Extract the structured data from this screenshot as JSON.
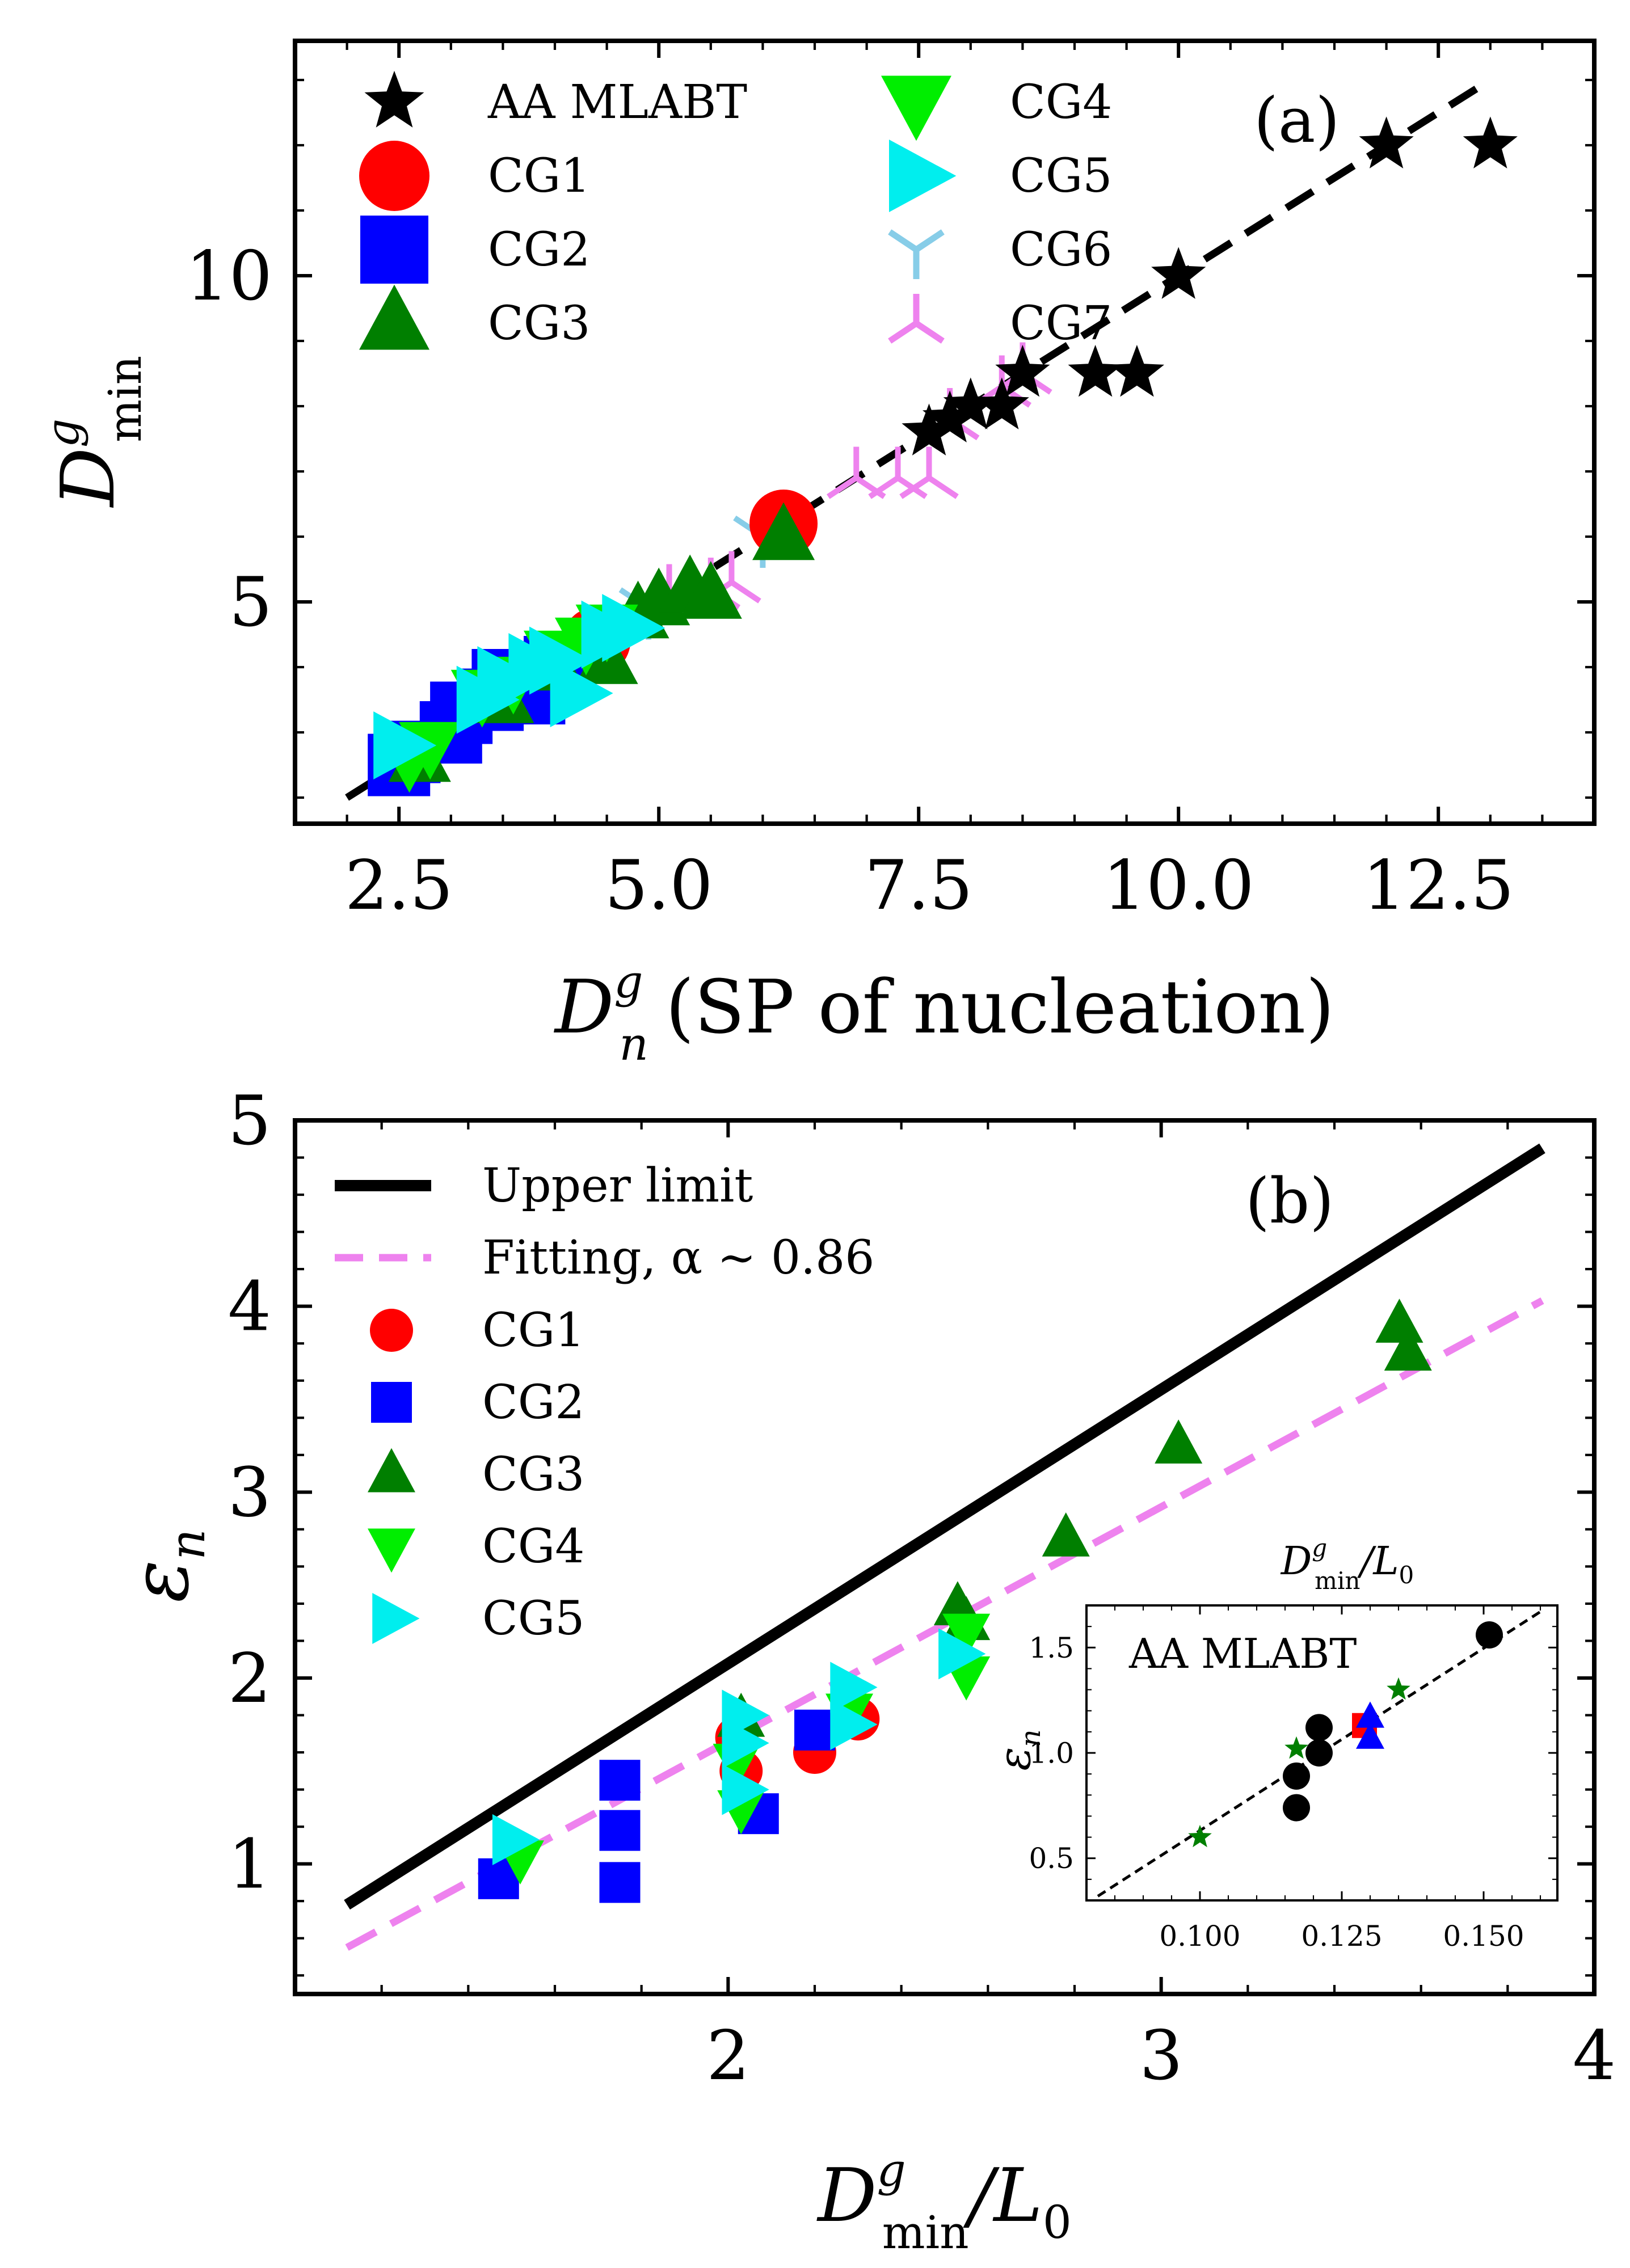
{
  "colors": {
    "black": "#000000",
    "red": "#ff0000",
    "blue": "#0000ff",
    "darkgreen": "#007f00",
    "lime": "#00ee00",
    "cyan": "#00eeee",
    "skyblue": "#87cde8",
    "violet": "#ee82ee"
  },
  "chart_data": [
    {
      "id": "a",
      "type": "scatter",
      "panel_label": "(a)",
      "xlabel_main": "D",
      "xlabel_sup": "g",
      "xlabel_sub": "n",
      "xlabel_rest": "(SP of nucleation)",
      "ylabel_main": "D",
      "ylabel_sup": "g",
      "ylabel_sub": "min",
      "xlim": [
        1.5,
        14.0
      ],
      "ylim": [
        1.6,
        13.6
      ],
      "xticks": [
        "2.5",
        "5.0",
        "7.5",
        "10.0",
        "12.5"
      ],
      "xtick_values": [
        2.5,
        5.0,
        7.5,
        10.0,
        12.5
      ],
      "yticks": [
        "5",
        "10"
      ],
      "ytick_values": [
        5,
        10
      ],
      "legend_position": "top-left",
      "fit_line": {
        "name": "fit",
        "style": "dashed",
        "color": "#000000",
        "from": [
          2.0,
          2.0
        ],
        "to": [
          13.0,
          13.0
        ]
      },
      "series": [
        {
          "name": "AA MLABT",
          "marker": "star",
          "color": "#000000",
          "points": [
            [
              7.6,
              7.6
            ],
            [
              7.8,
              7.8
            ],
            [
              8.0,
              8.0
            ],
            [
              8.3,
              8.0
            ],
            [
              8.5,
              8.5
            ],
            [
              9.2,
              8.5
            ],
            [
              9.6,
              8.5
            ],
            [
              10.0,
              10.0
            ],
            [
              12.0,
              12.0
            ],
            [
              13.0,
              12.0
            ]
          ]
        },
        {
          "name": "CG1",
          "marker": "circle",
          "color": "#ff0000",
          "points": [
            [
              6.2,
              6.2
            ],
            [
              4.4,
              4.4
            ]
          ]
        },
        {
          "name": "CG2",
          "marker": "square",
          "color": "#0000ff",
          "points": [
            [
              2.5,
              2.5
            ],
            [
              2.6,
              2.7
            ],
            [
              3.0,
              3.0
            ],
            [
              3.1,
              3.3
            ],
            [
              3.4,
              3.5
            ],
            [
              3.5,
              3.8
            ],
            [
              3.8,
              3.6
            ],
            [
              4.0,
              4.0
            ]
          ]
        },
        {
          "name": "CG3",
          "marker": "triangle-up",
          "color": "#007f00",
          "points": [
            [
              2.7,
              2.6
            ],
            [
              3.5,
              3.5
            ],
            [
              4.0,
              4.0
            ],
            [
              4.5,
              4.1
            ],
            [
              4.8,
              4.8
            ],
            [
              5.0,
              5.0
            ],
            [
              5.3,
              5.2
            ],
            [
              5.5,
              5.1
            ],
            [
              6.2,
              6.0
            ]
          ]
        },
        {
          "name": "CG4",
          "marker": "triangle-down",
          "color": "#00ee00",
          "points": [
            [
              2.6,
              2.6
            ],
            [
              2.8,
              2.8
            ],
            [
              3.3,
              3.6
            ],
            [
              3.6,
              3.8
            ],
            [
              4.0,
              4.2
            ],
            [
              4.3,
              4.4
            ],
            [
              4.5,
              4.6
            ]
          ]
        },
        {
          "name": "CG5",
          "marker": "triangle-right",
          "color": "#00eeee",
          "points": [
            [
              2.5,
              2.8
            ],
            [
              3.3,
              3.5
            ],
            [
              3.5,
              3.8
            ],
            [
              3.8,
              4.0
            ],
            [
              4.0,
              4.1
            ],
            [
              4.2,
              3.6
            ],
            [
              4.5,
              4.5
            ],
            [
              4.7,
              4.6
            ]
          ]
        },
        {
          "name": "CG6",
          "marker": "tri-down",
          "color": "#87cde8",
          "points": [
            [
              3.5,
              3.5
            ],
            [
              4.3,
              4.0
            ],
            [
              4.9,
              4.9
            ],
            [
              6.0,
              6.0
            ]
          ]
        },
        {
          "name": "CG7",
          "marker": "tri-up",
          "color": "#ee82ee",
          "points": [
            [
              3.8,
              3.8
            ],
            [
              4.1,
              4.1
            ],
            [
              5.1,
              5.1
            ],
            [
              5.5,
              5.2
            ],
            [
              5.7,
              5.3
            ],
            [
              6.9,
              6.9
            ],
            [
              7.3,
              6.9
            ],
            [
              7.6,
              6.9
            ],
            [
              7.8,
              7.8
            ],
            [
              8.3,
              8.3
            ],
            [
              8.5,
              8.5
            ]
          ]
        }
      ]
    },
    {
      "id": "b",
      "type": "scatter",
      "panel_label": "(b)",
      "xlabel_main": "D",
      "xlabel_sup": "g",
      "xlabel_sub": "min",
      "xlabel_rest": "/L",
      "xlabel_rest_sub": "0",
      "ylabel": "ε",
      "ylabel_sub": "n",
      "xlim": [
        1.0,
        4.0
      ],
      "ylim": [
        0.3,
        5.0
      ],
      "xticks": [
        "2",
        "3",
        "4"
      ],
      "xtick_values": [
        2,
        3,
        4
      ],
      "yticks": [
        "1",
        "2",
        "3",
        "4",
        "5"
      ],
      "ytick_values": [
        1,
        2,
        3,
        4,
        5
      ],
      "legend_position": "top-left",
      "lines": [
        {
          "name": "Upper limit",
          "style": "solid",
          "color": "#000000",
          "from": [
            1.12,
            0.78
          ],
          "to": [
            3.88,
            4.85
          ]
        },
        {
          "name": "Fitting, α ∼ 0.86",
          "style": "dashed",
          "color": "#ee82ee",
          "from": [
            1.12,
            0.55
          ],
          "to": [
            3.88,
            4.03
          ]
        }
      ],
      "series": [
        {
          "name": "CG1",
          "marker": "circle",
          "color": "#ff0000",
          "points": [
            [
              2.02,
              1.68
            ],
            [
              2.03,
              1.5
            ],
            [
              2.2,
              1.6
            ],
            [
              2.3,
              1.78
            ]
          ]
        },
        {
          "name": "CG2",
          "marker": "square",
          "color": "#0000ff",
          "points": [
            [
              1.47,
              0.92
            ],
            [
              1.75,
              1.45
            ],
            [
              1.75,
              1.18
            ],
            [
              1.75,
              0.9
            ],
            [
              2.07,
              1.27
            ],
            [
              2.2,
              1.72
            ]
          ]
        },
        {
          "name": "CG3",
          "marker": "triangle-up",
          "color": "#007f00",
          "points": [
            [
              2.03,
              1.78
            ],
            [
              2.53,
              2.38
            ],
            [
              2.55,
              2.3
            ],
            [
              2.78,
              2.75
            ],
            [
              3.04,
              3.25
            ],
            [
              3.55,
              3.9
            ],
            [
              3.57,
              3.75
            ]
          ]
        },
        {
          "name": "CG4",
          "marker": "triangle-down",
          "color": "#00ee00",
          "points": [
            [
              1.52,
              1.03
            ],
            [
              2.02,
              1.55
            ],
            [
              2.03,
              1.3
            ],
            [
              2.28,
              1.82
            ],
            [
              2.55,
              2.02
            ],
            [
              2.55,
              2.25
            ]
          ]
        },
        {
          "name": "CG5",
          "marker": "triangle-right",
          "color": "#00eeee",
          "points": [
            [
              1.5,
              1.13
            ],
            [
              2.03,
              1.8
            ],
            [
              2.03,
              1.65
            ],
            [
              2.03,
              1.4
            ],
            [
              2.28,
              1.95
            ],
            [
              2.28,
              1.75
            ],
            [
              2.53,
              2.13
            ]
          ]
        }
      ],
      "inset": {
        "label": "AA MLABT",
        "top_label_main": "D",
        "top_label_sup": "g",
        "top_label_sub": "min",
        "top_label_rest": "/L",
        "top_label_rest_sub": "0",
        "ylabel": "ε",
        "ylabel_sub": "n",
        "xlim": [
          0.08,
          0.163
        ],
        "ylim": [
          0.3,
          1.7
        ],
        "xticks": [
          "0.100",
          "0.125",
          "0.150"
        ],
        "xtick_values": [
          0.1,
          0.125,
          0.15
        ],
        "yticks": [
          "0.5",
          "1.0",
          "1.5"
        ],
        "ytick_values": [
          0.5,
          1.0,
          1.5
        ],
        "fit_line": {
          "style": "dashed",
          "color": "#000000",
          "from": [
            0.082,
            0.32
          ],
          "to": [
            0.16,
            1.67
          ]
        },
        "series": [
          {
            "name": "black-circles",
            "marker": "circle",
            "color": "#000000",
            "points": [
              [
                0.117,
                0.74
              ],
              [
                0.117,
                0.89
              ],
              [
                0.121,
                1.0
              ],
              [
                0.121,
                1.12
              ],
              [
                0.151,
                1.56
              ]
            ]
          },
          {
            "name": "green-stars",
            "marker": "star",
            "color": "#007f00",
            "points": [
              [
                0.1,
                0.6
              ],
              [
                0.117,
                1.02
              ],
              [
                0.135,
                1.3
              ]
            ]
          },
          {
            "name": "red-squares",
            "marker": "square",
            "color": "#ff0000",
            "points": [
              [
                0.129,
                1.13
              ]
            ]
          },
          {
            "name": "blue-triangles",
            "marker": "triangle-up",
            "color": "#0000ff",
            "points": [
              [
                0.13,
                1.07
              ],
              [
                0.13,
                1.17
              ]
            ]
          }
        ]
      }
    }
  ]
}
